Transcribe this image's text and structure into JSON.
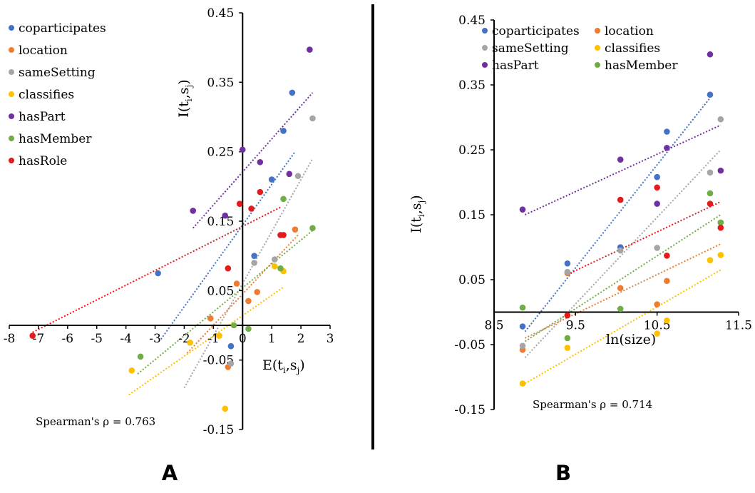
{
  "colors": {
    "coparticipates": "#4472C4",
    "location": "#ED7D31",
    "sameSetting": "#A5A5A5",
    "classifies": "#FFC000",
    "hasPart": "#7030A0",
    "hasMember": "#70AD47",
    "hasRole": "#E41A1C",
    "axis": "#000000",
    "divider": "#000000"
  },
  "chart_data": [
    {
      "panel_label": "A",
      "type": "scatter",
      "title": "",
      "xlabel": "E(t_i,s_j)",
      "ylabel": "I(t_i,s_j)",
      "xlim": [
        -8,
        3
      ],
      "ylim": [
        -0.15,
        0.45
      ],
      "x_ticks": [
        "-8",
        "-7",
        "-6",
        "-5",
        "-4",
        "-3",
        "-2",
        "-1",
        "0",
        "1",
        "2",
        "3"
      ],
      "y_ticks": [
        "0.45",
        "0.35",
        "0.25",
        "0.15",
        "0.05",
        "-0.05",
        "-0.15"
      ],
      "annotation": "Spearman's ρ = 0.763",
      "legend": [
        "coparticipates",
        "location",
        "sameSetting",
        "classifies",
        "hasPart",
        "hasMember",
        "hasRole"
      ],
      "series": [
        {
          "name": "coparticipates",
          "x": [
            -2.9,
            0.4,
            1.0,
            1.4,
            1.7,
            -0.4
          ],
          "y": [
            0.075,
            0.1,
            0.21,
            0.28,
            0.335,
            -0.03
          ],
          "trend": [
            [
              -2.8,
              -0.02
            ],
            [
              1.8,
              0.25
            ]
          ]
        },
        {
          "name": "location",
          "x": [
            -1.1,
            -0.2,
            0.2,
            0.5,
            1.8,
            -0.5
          ],
          "y": [
            0.01,
            0.06,
            0.035,
            0.048,
            0.138,
            -0.06
          ],
          "trend": [
            [
              -1.9,
              -0.04
            ],
            [
              1.9,
              0.13
            ]
          ]
        },
        {
          "name": "sameSetting",
          "x": [
            0.4,
            1.1,
            1.9,
            2.4,
            -0.4
          ],
          "y": [
            0.09,
            0.095,
            0.215,
            0.298,
            -0.055
          ],
          "trend": [
            [
              -2.0,
              -0.09
            ],
            [
              2.4,
              0.24
            ]
          ]
        },
        {
          "name": "classifies",
          "x": [
            -3.8,
            -1.8,
            -0.8,
            -0.6,
            1.1,
            1.4
          ],
          "y": [
            -0.065,
            -0.025,
            -0.015,
            -0.12,
            0.085,
            0.078
          ],
          "trend": [
            [
              -3.9,
              -0.1
            ],
            [
              1.4,
              0.055
            ]
          ]
        },
        {
          "name": "hasPart",
          "x": [
            -1.7,
            -0.6,
            0.0,
            0.6,
            1.6,
            2.3
          ],
          "y": [
            0.165,
            0.158,
            0.253,
            0.235,
            0.218,
            0.397
          ],
          "trend": [
            [
              -1.7,
              0.14
            ],
            [
              2.4,
              0.335
            ]
          ]
        },
        {
          "name": "hasMember",
          "x": [
            -3.5,
            -0.3,
            0.2,
            1.3,
            1.4,
            2.4
          ],
          "y": [
            -0.045,
            0.0,
            -0.005,
            0.082,
            0.182,
            0.14
          ],
          "trend": [
            [
              -3.6,
              -0.07
            ],
            [
              2.5,
              0.14
            ]
          ]
        },
        {
          "name": "hasRole",
          "x": [
            -7.2,
            -0.5,
            -0.1,
            0.3,
            0.6,
            1.3,
            1.4
          ],
          "y": [
            -0.015,
            0.082,
            0.175,
            0.168,
            0.192,
            0.13,
            0.13
          ],
          "trend": [
            [
              -7.2,
              -0.01
            ],
            [
              1.3,
              0.17
            ]
          ]
        }
      ]
    },
    {
      "panel_label": "B",
      "type": "scatter",
      "title": "",
      "xlabel": "ln(size)",
      "ylabel": "I(t_i,s_j)",
      "xlim": [
        8.5,
        11.5
      ],
      "ylim": [
        -0.15,
        0.45
      ],
      "x_ticks": [
        "8.5",
        "9.5",
        "10.5",
        "11.5"
      ],
      "y_ticks": [
        "0.45",
        "0.35",
        "0.25",
        "0.15",
        "0.05",
        "-0.05",
        "-0.15"
      ],
      "annotation": "Spearman's ρ = 0.714",
      "legend": [
        "coparticipates",
        "location",
        "sameSetting",
        "classifies",
        "hasPart",
        "hasMember"
      ],
      "series": [
        {
          "name": "coparticipates",
          "x": [
            8.85,
            9.4,
            10.05,
            10.5,
            10.62,
            11.15
          ],
          "y": [
            -0.022,
            0.075,
            0.1,
            0.208,
            0.278,
            0.335
          ],
          "trend": [
            [
              8.88,
              -0.03
            ],
            [
              11.15,
              0.33
            ]
          ]
        },
        {
          "name": "location",
          "x": [
            8.85,
            9.4,
            10.05,
            10.5,
            10.62,
            11.28
          ],
          "y": [
            -0.058,
            0.06,
            0.037,
            0.012,
            0.048,
            0.138
          ],
          "trend": [
            [
              8.88,
              -0.04
            ],
            [
              11.28,
              0.105
            ]
          ]
        },
        {
          "name": "sameSetting",
          "x": [
            8.85,
            9.4,
            10.05,
            10.5,
            11.15,
            11.28
          ],
          "y": [
            -0.052,
            0.062,
            0.095,
            0.099,
            0.215,
            0.297
          ],
          "trend": [
            [
              8.88,
              -0.07
            ],
            [
              11.28,
              0.25
            ]
          ]
        },
        {
          "name": "classifies",
          "x": [
            8.85,
            9.4,
            10.5,
            10.62,
            11.15,
            11.28
          ],
          "y": [
            -0.11,
            -0.055,
            -0.033,
            -0.013,
            0.08,
            0.088
          ],
          "trend": [
            [
              8.88,
              -0.11
            ],
            [
              11.28,
              0.065
            ]
          ]
        },
        {
          "name": "hasPart",
          "x": [
            8.85,
            10.05,
            10.5,
            10.62,
            11.15,
            11.28
          ],
          "y": [
            0.158,
            0.235,
            0.167,
            0.253,
            0.397,
            0.218
          ],
          "trend": [
            [
              8.88,
              0.15
            ],
            [
              11.28,
              0.288
            ]
          ]
        },
        {
          "name": "hasMember",
          "x": [
            8.85,
            9.4,
            10.05,
            11.15,
            11.28
          ],
          "y": [
            0.007,
            -0.04,
            0.005,
            0.183,
            0.138
          ],
          "trend": [
            [
              8.88,
              -0.045
            ],
            [
              11.28,
              0.15
            ]
          ]
        },
        {
          "name": "hasRole",
          "x": [
            9.4,
            10.05,
            10.5,
            10.62,
            11.15,
            11.28
          ],
          "y": [
            -0.005,
            0.173,
            0.192,
            0.087,
            0.167,
            0.13
          ],
          "trend": [
            [
              9.4,
              0.058
            ],
            [
              11.28,
              0.17
            ]
          ]
        }
      ]
    }
  ]
}
